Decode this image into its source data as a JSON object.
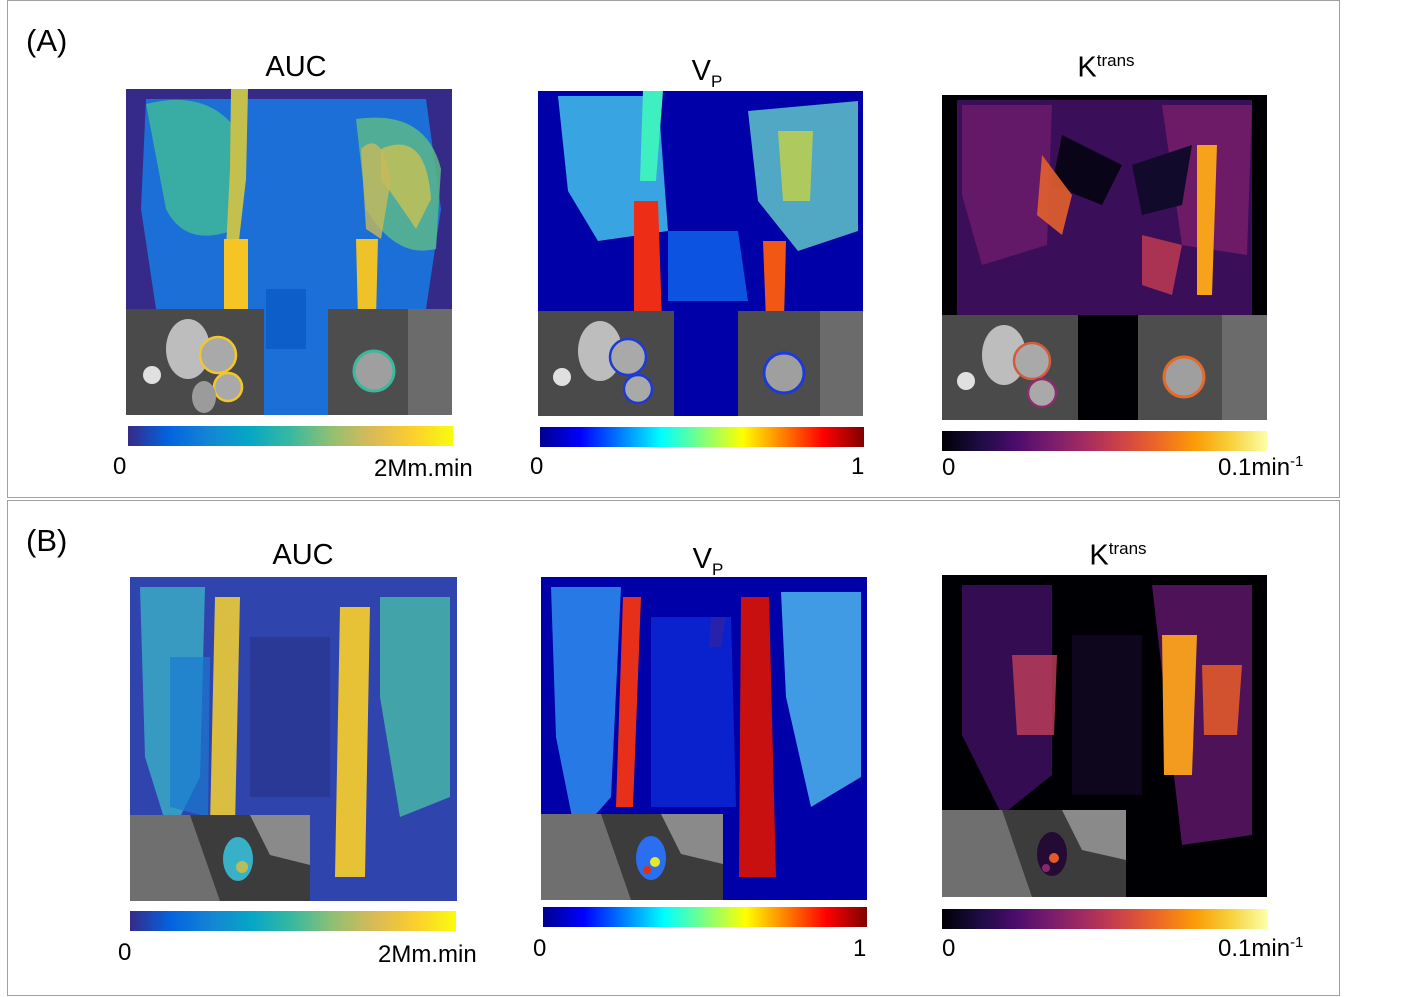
{
  "panels": [
    {
      "label": "(A)",
      "maps": [
        {
          "title": "AUC",
          "colormap": "parula",
          "cbar_min": "0",
          "cbar_max": "2Mm.min"
        },
        {
          "title_main": "V",
          "title_sub": "P",
          "colormap": "jet",
          "cbar_min": "0",
          "cbar_max": "1"
        },
        {
          "title_main": "K",
          "title_sup": "trans",
          "colormap": "inferno",
          "cbar_min": "0",
          "cbar_max_main": "0.1min",
          "cbar_max_sup": "-1"
        }
      ]
    },
    {
      "label": "(B)",
      "maps": [
        {
          "title": "AUC",
          "colormap": "parula",
          "cbar_min": "0",
          "cbar_max": "2Mm.min"
        },
        {
          "title_main": "V",
          "title_sub": "P",
          "colormap": "jet",
          "cbar_min": "0",
          "cbar_max": "1"
        },
        {
          "title_main": "K",
          "title_sup": "trans",
          "colormap": "inferno",
          "cbar_min": "0",
          "cbar_max_main": "0.1min",
          "cbar_max_sup": "-1"
        }
      ]
    }
  ],
  "colors": {
    "parula": [
      "#352a87",
      "#0363e1",
      "#1485d4",
      "#06a7c6",
      "#38b99e",
      "#92bf73",
      "#d9ba56",
      "#fcce2e",
      "#f9fb0e"
    ],
    "jet": [
      "#00008f",
      "#0000ff",
      "#007fff",
      "#00ffff",
      "#7fff7f",
      "#ffff00",
      "#ff7f00",
      "#ff0000",
      "#7f0000"
    ],
    "inferno": [
      "#000004",
      "#1b0c41",
      "#4a0c6b",
      "#781c6d",
      "#a52c60",
      "#cf4446",
      "#ed6925",
      "#fb9b06",
      "#f7d13d",
      "#fcffa4"
    ],
    "border": "#a0a0a0"
  }
}
